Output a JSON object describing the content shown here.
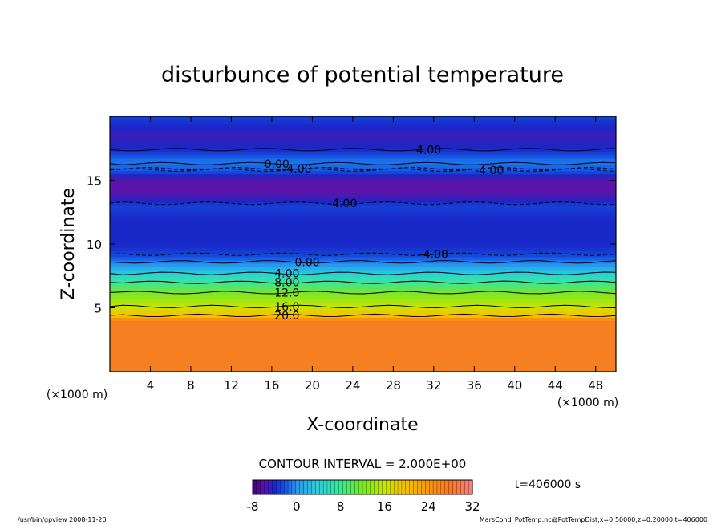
{
  "chart_data": {
    "type": "heatmap",
    "title": "disturbunce of potential temperature",
    "xlabel": "X-coordinate",
    "ylabel": "Z-coordinate",
    "x_unit": "(×1000 m)",
    "y_unit": "(×1000 m)",
    "xlim": [
      0,
      50
    ],
    "ylim": [
      0,
      20
    ],
    "x_ticks": [
      4,
      8,
      12,
      16,
      20,
      24,
      28,
      32,
      36,
      40,
      44,
      48
    ],
    "y_ticks": [
      5,
      10,
      15
    ],
    "grid": false,
    "contour_interval_text": "CONTOUR INTERVAL = 2.000E+00",
    "time_text": "t=406000 s",
    "colorbar": {
      "range": [
        -8,
        32
      ],
      "tick_labels": [
        "-8",
        "0",
        "8",
        "16",
        "24",
        "32"
      ],
      "tick_values": [
        -8,
        0,
        8,
        16,
        24,
        32
      ]
    },
    "contour_labels": [
      {
        "text": "4.00",
        "x": 31.5,
        "z": 17.4
      },
      {
        "text": "0.00",
        "x": 16.5,
        "z": 16.3
      },
      {
        "text": "-4.00",
        "x": 18.5,
        "z": 15.9
      },
      {
        "text": "-4.00",
        "x": 37.5,
        "z": 15.8
      },
      {
        "text": "-4.00",
        "x": 23.0,
        "z": 13.2
      },
      {
        "text": "-4.00",
        "x": 32.0,
        "z": 9.2
      },
      {
        "text": "0.00",
        "x": 19.5,
        "z": 8.6
      },
      {
        "text": "4.00",
        "x": 17.5,
        "z": 7.7
      },
      {
        "text": "8.00",
        "x": 17.5,
        "z": 7.0
      },
      {
        "text": "12.0",
        "x": 17.5,
        "z": 6.2
      },
      {
        "text": "16.0",
        "x": 17.5,
        "z": 5.1
      },
      {
        "text": "20.0",
        "x": 17.5,
        "z": 4.4
      }
    ],
    "profile_rows": [
      {
        "z": 0.0,
        "value": 27
      },
      {
        "z": 4.0,
        "value": 27
      },
      {
        "z": 4.4,
        "value": 20
      },
      {
        "z": 5.1,
        "value": 16
      },
      {
        "z": 6.2,
        "value": 12
      },
      {
        "z": 7.0,
        "value": 8
      },
      {
        "z": 7.7,
        "value": 4
      },
      {
        "z": 8.4,
        "value": 0
      },
      {
        "z": 9.2,
        "value": -3
      },
      {
        "z": 10.0,
        "value": -4
      },
      {
        "z": 12.0,
        "value": -4
      },
      {
        "z": 13.0,
        "value": -3
      },
      {
        "z": 14.0,
        "value": -6
      },
      {
        "z": 15.0,
        "value": -6
      },
      {
        "z": 15.8,
        "value": -2
      },
      {
        "z": 16.5,
        "value": -1
      },
      {
        "z": 17.5,
        "value": -4
      },
      {
        "z": 18.5,
        "value": -5
      },
      {
        "z": 20.0,
        "value": -3
      }
    ]
  },
  "footer": {
    "left": "/usr/bin/gpview   2008-11-20",
    "right": "MarsCond_PotTemp.nc@PotTempDist,x=0:50000,z=0:20000,t=406000"
  }
}
